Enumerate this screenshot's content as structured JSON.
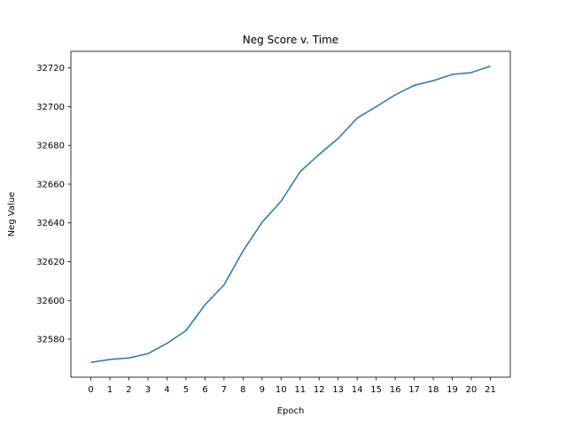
{
  "chart_data": {
    "type": "line",
    "title": "Neg Score v. Time",
    "xlabel": "Epoch",
    "ylabel": "Neg Value",
    "x": [
      0,
      1,
      2,
      3,
      4,
      5,
      6,
      7,
      8,
      9,
      10,
      11,
      12,
      13,
      14,
      15,
      16,
      17,
      18,
      19,
      20,
      21
    ],
    "x_tick_labels": [
      "0",
      "1",
      "2",
      "3",
      "4",
      "5",
      "6",
      "7",
      "8",
      "9",
      "10",
      "11",
      "12",
      "13",
      "14",
      "15",
      "16",
      "17",
      "18",
      "19",
      "20",
      "21"
    ],
    "y_ticks": [
      32580,
      32600,
      32620,
      32640,
      32660,
      32680,
      32700,
      32720
    ],
    "y_tick_labels": [
      "32580",
      "32600",
      "32620",
      "32640",
      "32660",
      "32680",
      "32700",
      "32720"
    ],
    "series": [
      {
        "color": "#1f77b4",
        "values": [
          32568,
          32569.5,
          32570.3,
          32572.5,
          32577.8,
          32584.4,
          32597.7,
          32608,
          32625.5,
          32640.3,
          32651.2,
          32666.4,
          32675.3,
          32683.6,
          32694.1,
          32700,
          32706.1,
          32711,
          32713.4,
          32716.6,
          32717.6,
          32720.9
        ]
      }
    ],
    "xlim": [
      -1.05,
      22.05
    ],
    "ylim": [
      32560.35,
      32728.55
    ],
    "grid": false,
    "legend": "none"
  }
}
